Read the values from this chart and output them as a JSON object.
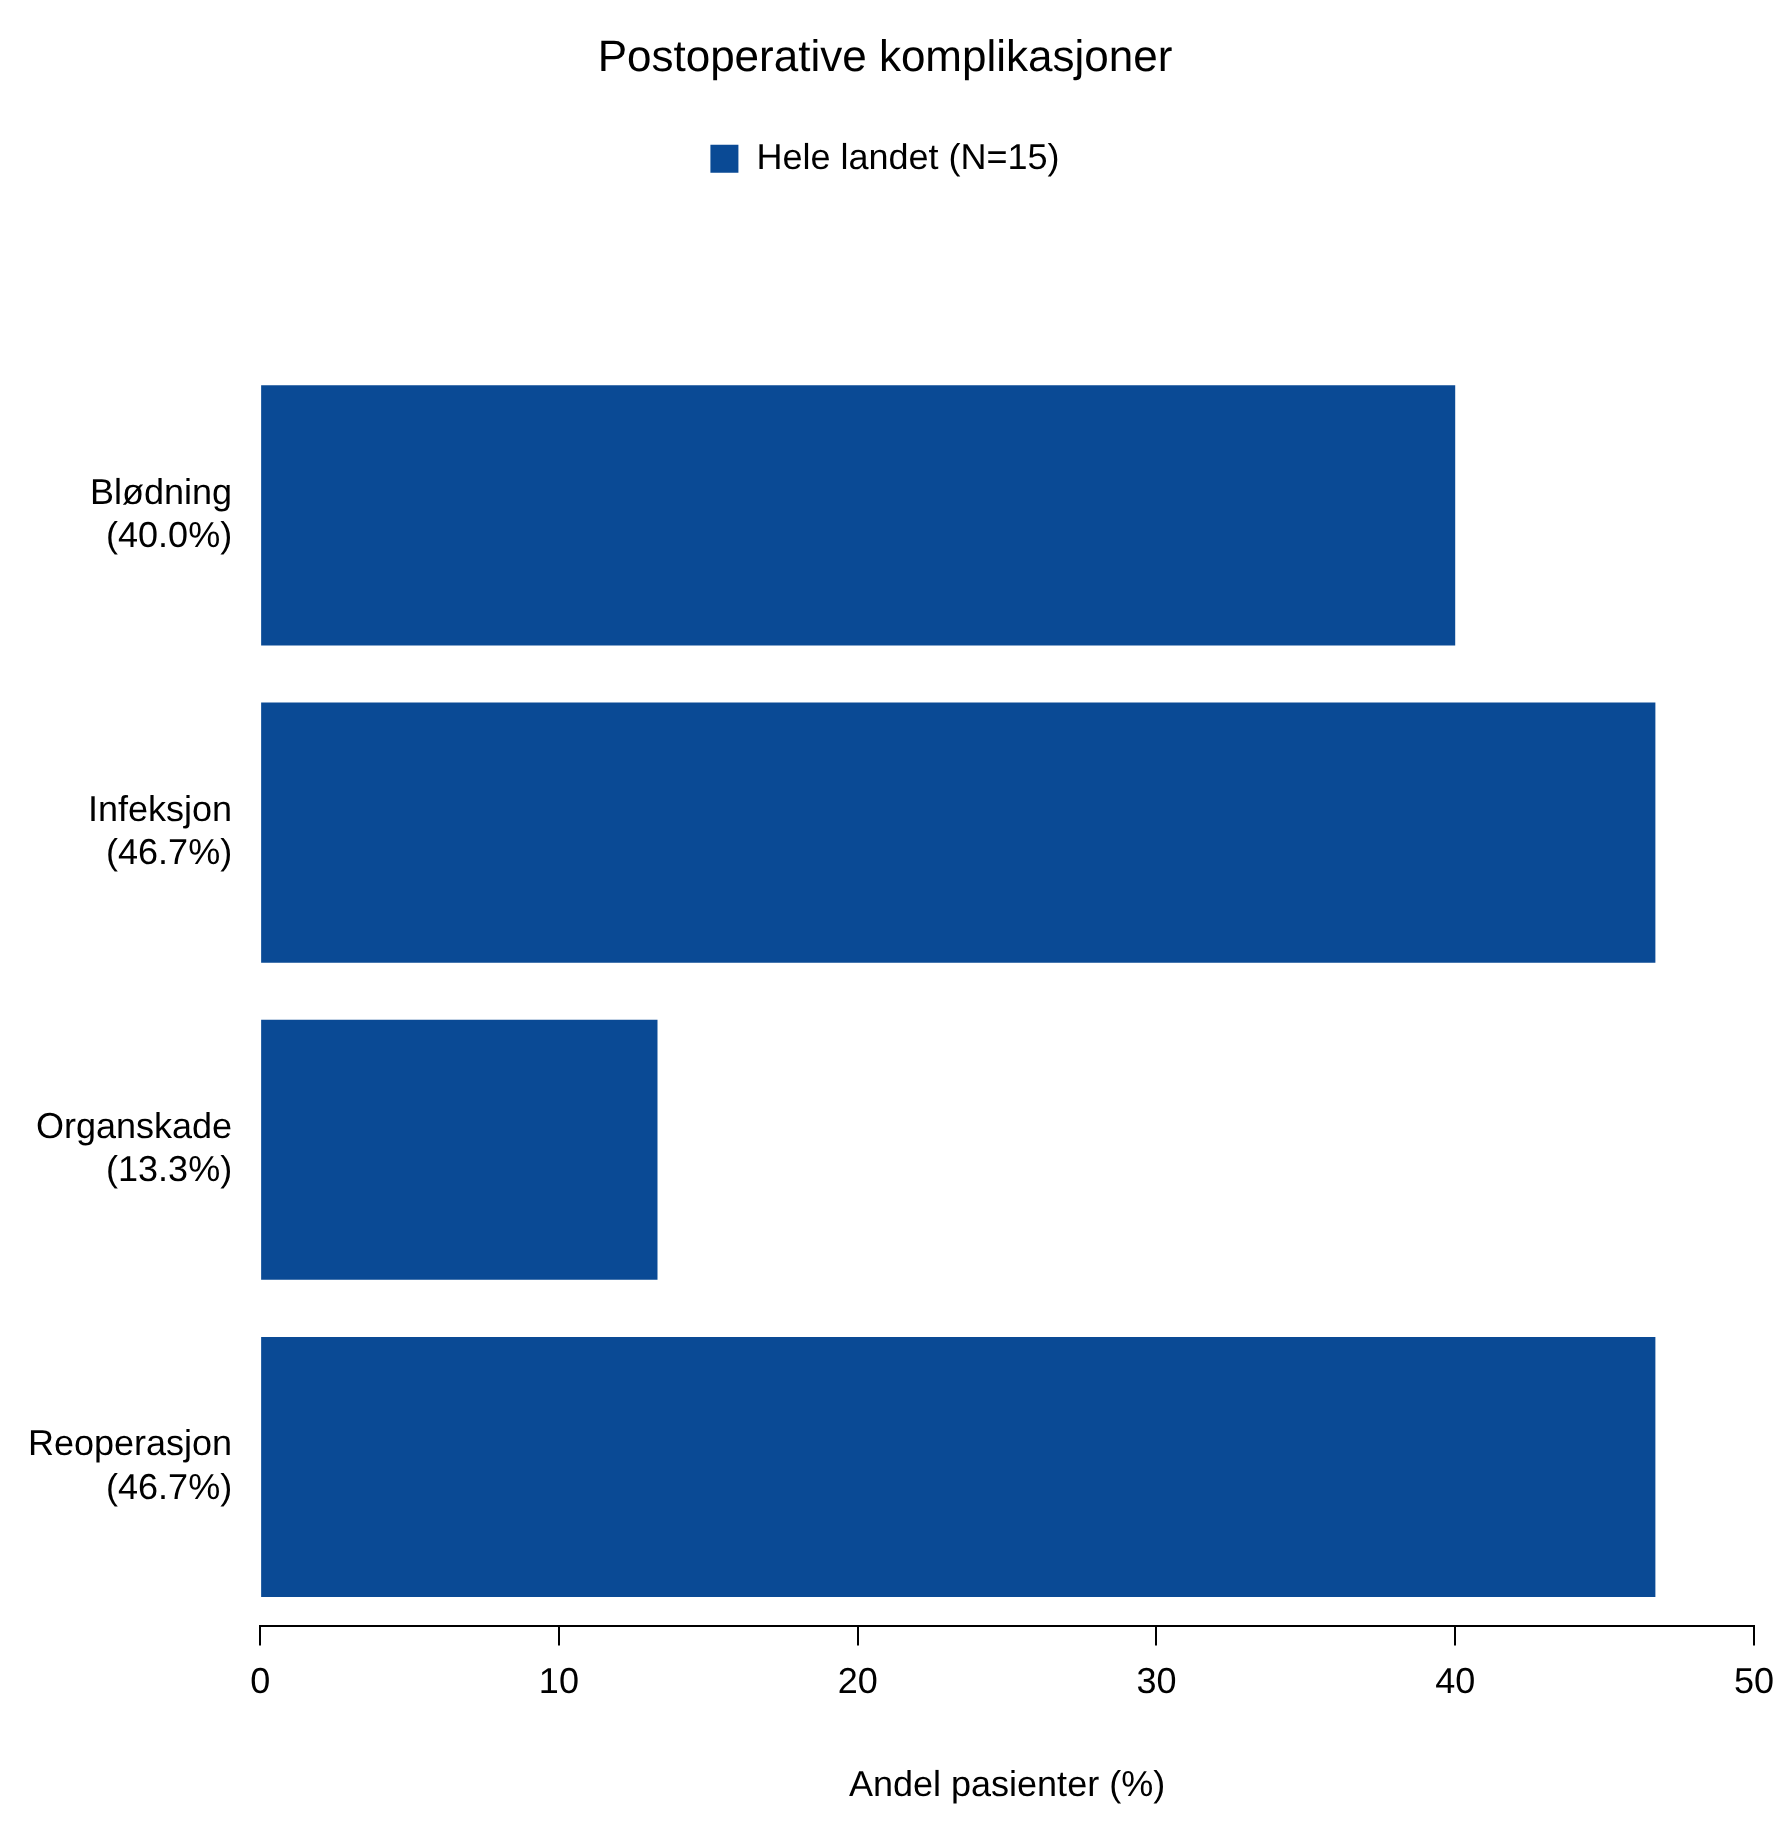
{
  "chart_data": {
    "type": "bar",
    "orientation": "horizontal",
    "title": "Postoperative komplikasjoner",
    "xlabel": "Andel pasienter (%)",
    "categories": [
      "Blødning\n(40.0%)",
      "Infeksjon\n(46.7%)",
      "Organskade\n(13.3%)",
      "Reoperasjon\n(46.7%)"
    ],
    "series": [
      {
        "name": "Hele landet (N=15)",
        "color": "#0a4a95",
        "values": [
          40.0,
          46.7,
          13.3,
          46.7
        ]
      }
    ],
    "xlim": [
      0,
      50
    ],
    "xticks": [
      0,
      10,
      20,
      30,
      40,
      50
    ],
    "grid": false,
    "legend": "top"
  }
}
